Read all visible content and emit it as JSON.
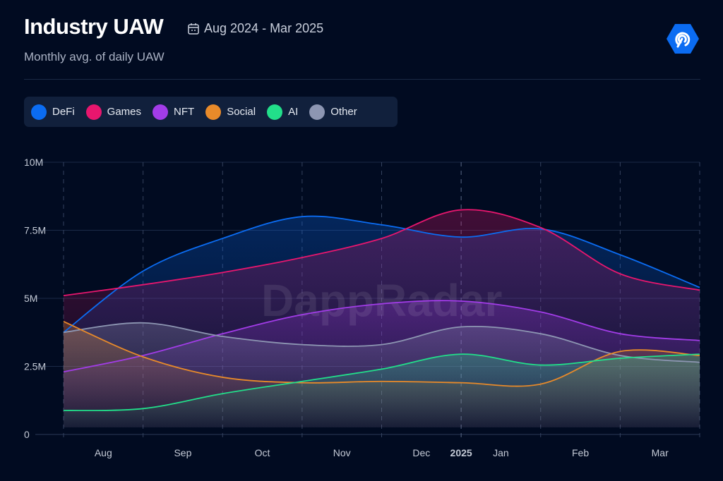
{
  "header": {
    "title": "Industry UAW",
    "date_range": "Aug 2024 - Mar 2025",
    "subtitle": "Monthly avg. of daily UAW",
    "watermark": "DappRadar"
  },
  "legend": [
    {
      "label": "DeFi",
      "color": "#0b6cf2"
    },
    {
      "label": "Games",
      "color": "#e8166e"
    },
    {
      "label": "NFT",
      "color": "#a23ce8"
    },
    {
      "label": "Social",
      "color": "#e88a2a"
    },
    {
      "label": "AI",
      "color": "#22df8a"
    },
    {
      "label": "Other",
      "color": "#8d96b2"
    }
  ],
  "chart_data": {
    "type": "area",
    "title": "Industry UAW",
    "subtitle": "Monthly avg. of daily UAW",
    "xlabel": "",
    "ylabel": "",
    "ylim": [
      0,
      10000000
    ],
    "yticks": [
      {
        "v": 0,
        "label": "0"
      },
      {
        "v": 2500000,
        "label": "2.5M"
      },
      {
        "v": 5000000,
        "label": "5M"
      },
      {
        "v": 7500000,
        "label": "7.5M"
      },
      {
        "v": 10000000,
        "label": "10M"
      }
    ],
    "x": [
      "2024-08-01",
      "2024-09-01",
      "2024-10-01",
      "2024-11-01",
      "2024-12-01",
      "2025-01-01",
      "2025-02-01",
      "2025-03-01",
      "2025-04-01"
    ],
    "xticks": [
      {
        "pos": 0.5,
        "label": "Aug"
      },
      {
        "pos": 1.5,
        "label": "Sep"
      },
      {
        "pos": 2.5,
        "label": "Oct"
      },
      {
        "pos": 3.5,
        "label": "Nov"
      },
      {
        "pos": 4.5,
        "label": "Dec"
      },
      {
        "pos": 5,
        "label": "2025",
        "bold": true
      },
      {
        "pos": 5.5,
        "label": "Jan"
      },
      {
        "pos": 6.5,
        "label": "Feb"
      },
      {
        "pos": 7.5,
        "label": "Mar"
      }
    ],
    "grid": true,
    "legend_position": "top-left",
    "series": [
      {
        "name": "DeFi",
        "color": "#0b6cf2",
        "values": [
          3750000,
          6000000,
          7200000,
          8000000,
          7700000,
          7250000,
          7550000,
          6600000,
          5400000
        ]
      },
      {
        "name": "Games",
        "color": "#e8166e",
        "values": [
          5100000,
          5500000,
          5950000,
          6500000,
          7200000,
          8250000,
          7600000,
          5900000,
          5300000
        ]
      },
      {
        "name": "NFT",
        "color": "#a23ce8",
        "values": [
          2300000,
          2900000,
          3700000,
          4400000,
          4800000,
          4900000,
          4500000,
          3700000,
          3450000
        ]
      },
      {
        "name": "Other",
        "color": "#8d96b2",
        "values": [
          3750000,
          4100000,
          3600000,
          3300000,
          3300000,
          3950000,
          3700000,
          2900000,
          2650000
        ]
      },
      {
        "name": "Social",
        "color": "#e88a2a",
        "values": [
          4150000,
          2850000,
          2100000,
          1900000,
          1950000,
          1900000,
          1850000,
          3050000,
          2900000
        ]
      },
      {
        "name": "AI",
        "color": "#22df8a",
        "values": [
          880000,
          950000,
          1500000,
          1950000,
          2400000,
          2950000,
          2550000,
          2800000,
          2950000
        ]
      }
    ]
  }
}
